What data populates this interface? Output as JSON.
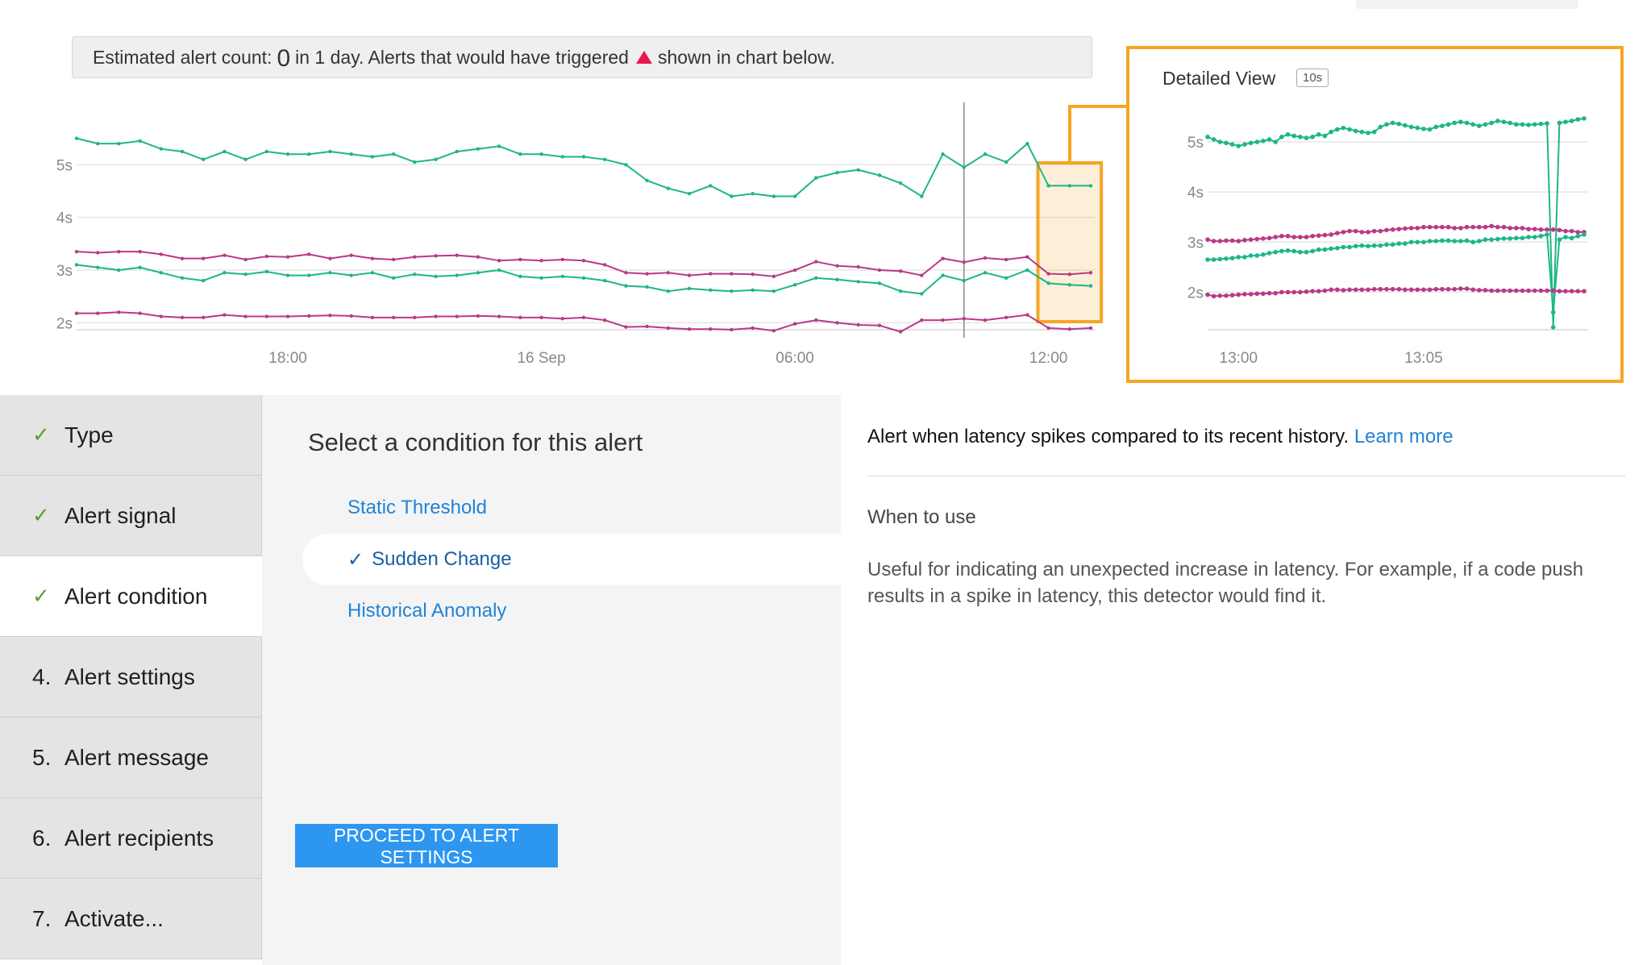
{
  "banner": {
    "prefix": "Estimated alert count:",
    "count": "0",
    "middle": "in 1 day. Alerts that would have triggered",
    "suffix": "shown in chart below.",
    "marker_color": "#e8174e"
  },
  "colors": {
    "accent_orange": "#f5a623",
    "series_green": "#1db58a",
    "series_magenta": "#b83a86",
    "primary_blue": "#2d96f0",
    "link_blue": "#1f83d6",
    "check_green": "#5aa02c"
  },
  "chart_data": [
    {
      "type": "line",
      "y_tick_labels": [
        "5s",
        "4s",
        "3s",
        "2s"
      ],
      "y_ticks": [
        5,
        4,
        3,
        2
      ],
      "ylim": [
        1.7,
        5.8
      ],
      "x_tick_labels": [
        "18:00",
        "16 Sep",
        "06:00",
        "12:00"
      ],
      "x_tick_index": [
        10,
        22,
        34,
        46
      ],
      "grid": true,
      "cursor_index": 42,
      "highlight_range": [
        45.5,
        48.5
      ],
      "series": [
        {
          "color": "#1db58a",
          "values": [
            5.5,
            5.4,
            5.4,
            5.45,
            5.3,
            5.25,
            5.1,
            5.25,
            5.1,
            5.25,
            5.2,
            5.2,
            5.25,
            5.2,
            5.15,
            5.2,
            5.05,
            5.1,
            5.25,
            5.3,
            5.35,
            5.2,
            5.2,
            5.15,
            5.15,
            5.1,
            5.0,
            4.7,
            4.55,
            4.45,
            4.6,
            4.4,
            4.45,
            4.4,
            4.4,
            4.75,
            4.85,
            4.9,
            4.8,
            4.65,
            4.4,
            5.2,
            4.95,
            5.2,
            5.05,
            5.4,
            4.6,
            4.6,
            4.6
          ]
        },
        {
          "color": "#b83a86",
          "values": [
            3.35,
            3.33,
            3.35,
            3.35,
            3.3,
            3.22,
            3.22,
            3.28,
            3.2,
            3.26,
            3.25,
            3.3,
            3.22,
            3.28,
            3.22,
            3.2,
            3.25,
            3.27,
            3.28,
            3.25,
            3.18,
            3.2,
            3.18,
            3.2,
            3.18,
            3.1,
            2.95,
            2.93,
            2.95,
            2.9,
            2.93,
            2.93,
            2.92,
            2.88,
            3.0,
            3.16,
            3.08,
            3.06,
            3.0,
            2.98,
            2.9,
            3.22,
            3.15,
            3.23,
            3.2,
            3.25,
            2.93,
            2.92,
            2.95
          ]
        },
        {
          "color": "#1db58a",
          "values": [
            3.1,
            3.05,
            3.0,
            3.05,
            2.95,
            2.85,
            2.8,
            2.95,
            2.92,
            2.97,
            2.9,
            2.9,
            2.95,
            2.9,
            2.95,
            2.85,
            2.92,
            2.88,
            2.9,
            2.95,
            3.0,
            2.88,
            2.85,
            2.88,
            2.85,
            2.8,
            2.7,
            2.68,
            2.6,
            2.65,
            2.62,
            2.6,
            2.62,
            2.6,
            2.72,
            2.85,
            2.82,
            2.78,
            2.75,
            2.6,
            2.55,
            2.9,
            2.8,
            2.95,
            2.85,
            3.0,
            2.75,
            2.72,
            2.7
          ]
        },
        {
          "color": "#b83a86",
          "values": [
            2.18,
            2.18,
            2.2,
            2.18,
            2.12,
            2.1,
            2.1,
            2.15,
            2.12,
            2.12,
            2.12,
            2.13,
            2.14,
            2.13,
            2.1,
            2.1,
            2.1,
            2.12,
            2.12,
            2.13,
            2.12,
            2.1,
            2.1,
            2.08,
            2.1,
            2.05,
            1.92,
            1.93,
            1.9,
            1.88,
            1.88,
            1.87,
            1.9,
            1.85,
            1.98,
            2.05,
            2.0,
            1.96,
            1.95,
            1.83,
            2.05,
            2.05,
            2.08,
            2.05,
            2.1,
            2.15,
            1.9,
            1.88,
            1.9
          ]
        }
      ]
    },
    {
      "type": "line",
      "title": "Detailed View",
      "badge": "10s",
      "y_tick_labels": [
        "5s",
        "4s",
        "3s",
        "2s"
      ],
      "y_ticks": [
        5,
        4,
        3,
        2
      ],
      "ylim": [
        1.25,
        5.5
      ],
      "x_tick_labels": [
        "13:00",
        "13:05"
      ],
      "x_tick_index": [
        5,
        35
      ],
      "grid": true,
      "series": [
        {
          "color": "#1db58a",
          "values": [
            5.1,
            5.05,
            5.0,
            4.98,
            4.95,
            4.92,
            4.95,
            4.98,
            5.0,
            5.02,
            5.05,
            5.0,
            5.1,
            5.15,
            5.12,
            5.1,
            5.08,
            5.1,
            5.15,
            5.12,
            5.2,
            5.25,
            5.28,
            5.25,
            5.22,
            5.2,
            5.18,
            5.2,
            5.3,
            5.35,
            5.38,
            5.36,
            5.33,
            5.3,
            5.28,
            5.26,
            5.25,
            5.3,
            5.32,
            5.35,
            5.38,
            5.4,
            5.38,
            5.35,
            5.32,
            5.35,
            5.38,
            5.42,
            5.4,
            5.38,
            5.35,
            5.35,
            5.34,
            5.35,
            5.36,
            5.37,
            1.3,
            5.38,
            5.4,
            5.42,
            5.45,
            5.47
          ]
        },
        {
          "color": "#b83a86",
          "values": [
            3.05,
            3.02,
            3.02,
            3.03,
            3.03,
            3.02,
            3.04,
            3.05,
            3.06,
            3.07,
            3.08,
            3.1,
            3.12,
            3.12,
            3.1,
            3.1,
            3.1,
            3.12,
            3.13,
            3.14,
            3.15,
            3.18,
            3.2,
            3.22,
            3.22,
            3.2,
            3.2,
            3.22,
            3.22,
            3.24,
            3.25,
            3.26,
            3.27,
            3.28,
            3.28,
            3.3,
            3.3,
            3.3,
            3.3,
            3.3,
            3.28,
            3.28,
            3.3,
            3.3,
            3.3,
            3.3,
            3.32,
            3.3,
            3.3,
            3.28,
            3.28,
            3.28,
            3.26,
            3.26,
            3.25,
            3.25,
            3.25,
            3.24,
            3.22,
            3.22,
            3.2,
            3.2
          ]
        },
        {
          "color": "#1db58a",
          "values": [
            2.65,
            2.65,
            2.66,
            2.67,
            2.68,
            2.7,
            2.7,
            2.73,
            2.73,
            2.75,
            2.78,
            2.8,
            2.82,
            2.83,
            2.82,
            2.8,
            2.8,
            2.82,
            2.85,
            2.85,
            2.87,
            2.88,
            2.9,
            2.9,
            2.92,
            2.93,
            2.92,
            2.93,
            2.93,
            2.95,
            2.95,
            2.97,
            2.97,
            3.0,
            3.0,
            3.0,
            3.02,
            3.02,
            3.03,
            3.03,
            3.02,
            3.02,
            3.03,
            3.0,
            3.02,
            3.05,
            3.05,
            3.06,
            3.07,
            3.07,
            3.08,
            3.08,
            3.1,
            3.1,
            3.12,
            3.15,
            1.6,
            3.05,
            3.1,
            3.08,
            3.12,
            3.15
          ]
        },
        {
          "color": "#b83a86",
          "values": [
            1.95,
            1.92,
            1.93,
            1.93,
            1.94,
            1.95,
            1.96,
            1.96,
            1.97,
            1.97,
            1.98,
            1.98,
            2.0,
            2.0,
            2.0,
            2.0,
            2.01,
            2.02,
            2.02,
            2.03,
            2.05,
            2.05,
            2.04,
            2.05,
            2.05,
            2.05,
            2.05,
            2.06,
            2.06,
            2.06,
            2.06,
            2.06,
            2.05,
            2.05,
            2.05,
            2.05,
            2.05,
            2.06,
            2.06,
            2.06,
            2.06,
            2.07,
            2.07,
            2.05,
            2.04,
            2.04,
            2.03,
            2.03,
            2.03,
            2.03,
            2.03,
            2.03,
            2.03,
            2.03,
            2.03,
            2.03,
            2.03,
            2.02,
            2.02,
            2.02,
            2.02,
            2.02
          ]
        }
      ]
    }
  ],
  "steps": [
    {
      "marker": "✓",
      "label": "Type",
      "done": true
    },
    {
      "marker": "✓",
      "label": "Alert signal",
      "done": true
    },
    {
      "marker": "✓",
      "label": "Alert condition",
      "done": true
    },
    {
      "marker": "4.",
      "label": "Alert settings",
      "done": false
    },
    {
      "marker": "5.",
      "label": "Alert message",
      "done": false
    },
    {
      "marker": "6.",
      "label": "Alert recipients",
      "done": false
    },
    {
      "marker": "7.",
      "label": "Activate...",
      "done": false
    }
  ],
  "condition": {
    "heading": "Select a condition for this alert",
    "options": [
      "Static Threshold",
      "Sudden Change",
      "Historical Anomaly"
    ],
    "selected_check": "✓",
    "proceed_label": "PROCEED TO ALERT SETTINGS"
  },
  "info": {
    "description": "Alert when latency spikes compared to its recent history.",
    "learn_more": "Learn more",
    "when_heading": "When to use",
    "when_text": "Useful for indicating an unexpected increase in latency. For example, if a code push results in a spike in latency, this detector would find it."
  }
}
